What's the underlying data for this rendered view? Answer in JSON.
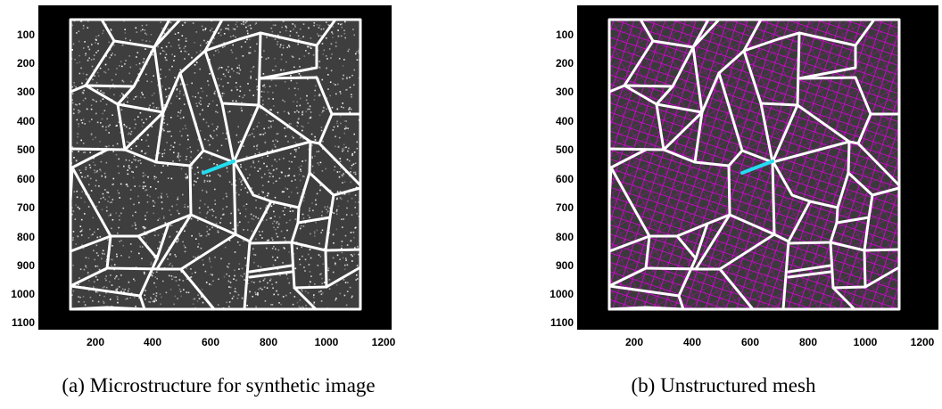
{
  "figure": {
    "panels": [
      {
        "label": "(a)",
        "caption": "Microstructure for synthetic image",
        "overlay": "none"
      },
      {
        "label": "(b)",
        "caption": "Unstructured mesh",
        "overlay": "mesh"
      }
    ],
    "y_ticks": [
      "100",
      "200",
      "300",
      "400",
      "500",
      "600",
      "700",
      "800",
      "900",
      "1000",
      "1100"
    ],
    "x_ticks": [
      "200",
      "400",
      "600",
      "800",
      "1000",
      "1200"
    ],
    "colors": {
      "background": "#000000",
      "grain_boundary": "#ffffff",
      "highlight_edge": "#22ddee",
      "mesh": "#dd00dd"
    }
  }
}
